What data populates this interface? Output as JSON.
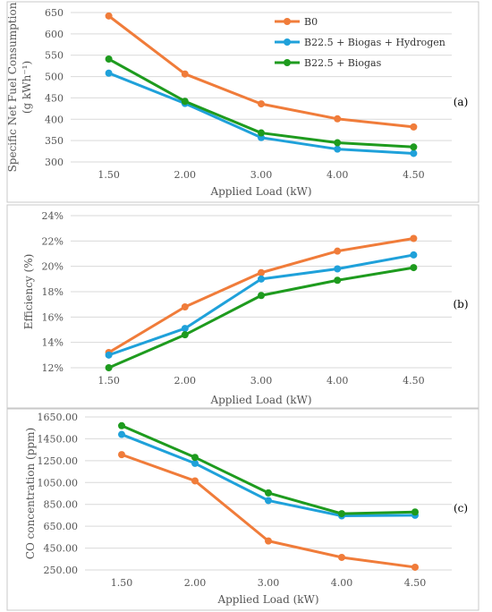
{
  "chart_data": [
    {
      "type": "line",
      "panel_label": "(a)",
      "categories": [
        "1.50",
        "2.00",
        "3.00",
        "4.00",
        "4.50"
      ],
      "xlabel": "Applied Load (kW)",
      "ylabel_line1": "Specific Net Fuel Consumption",
      "ylabel_line2": "(g kWh⁻¹)",
      "ylim": [
        300,
        650
      ],
      "yticks": [
        "300",
        "350",
        "400",
        "450",
        "500",
        "550",
        "600",
        "650"
      ],
      "ytick_values": [
        300,
        350,
        400,
        450,
        500,
        550,
        600,
        650
      ],
      "grid": true,
      "legend_position": "top-right-inside",
      "series": [
        {
          "name": "B0",
          "color": "#F07C3A",
          "values": [
            642,
            506,
            436,
            401,
            382
          ]
        },
        {
          "name": "B22.5 + Biogas + Hydrogen",
          "color": "#1FA1DA",
          "values": [
            508,
            437,
            357,
            330,
            320
          ]
        },
        {
          "name": "B22.5 + Biogas",
          "color": "#1E9B1E",
          "values": [
            541,
            442,
            368,
            345,
            335
          ]
        }
      ]
    },
    {
      "type": "line",
      "panel_label": "(b)",
      "categories": [
        "1.50",
        "2.00",
        "3.00",
        "4.00",
        "4.50"
      ],
      "xlabel": "Applied Load (kW)",
      "ylabel_line1": "Efficiency (%)",
      "ylabel_line2": "",
      "ylim": [
        12,
        24
      ],
      "yticks": [
        "12%",
        "14%",
        "16%",
        "18%",
        "20%",
        "22%",
        "24%"
      ],
      "ytick_values": [
        12,
        14,
        16,
        18,
        20,
        22,
        24
      ],
      "grid": true,
      "series": [
        {
          "name": "B0",
          "color": "#F07C3A",
          "values": [
            13.2,
            16.8,
            19.5,
            21.2,
            22.2
          ]
        },
        {
          "name": "B22.5 + Biogas + Hydrogen",
          "color": "#1FA1DA",
          "values": [
            13.0,
            15.1,
            19.0,
            19.8,
            20.9
          ]
        },
        {
          "name": "B22.5 + Biogas",
          "color": "#1E9B1E",
          "values": [
            12.0,
            14.6,
            17.7,
            18.9,
            19.9
          ]
        }
      ]
    },
    {
      "type": "line",
      "panel_label": "(c)",
      "categories": [
        "1.50",
        "2.00",
        "3.00",
        "4.00",
        "4.50"
      ],
      "xlabel": "Applied Load (kW)",
      "ylabel_line1": "CO concentration (ppm)",
      "ylabel_line2": "",
      "ylim": [
        250,
        1650
      ],
      "yticks": [
        "250.00",
        "450.00",
        "650.00",
        "850.00",
        "1050.00",
        "1250.00",
        "1450.00",
        "1650.00"
      ],
      "ytick_values": [
        250,
        450,
        650,
        850,
        1050,
        1250,
        1450,
        1650
      ],
      "grid": true,
      "series": [
        {
          "name": "B0",
          "color": "#F07C3A",
          "values": [
            1305,
            1065,
            515,
            365,
            275
          ]
        },
        {
          "name": "B22.5 + Biogas + Hydrogen",
          "color": "#1FA1DA",
          "values": [
            1490,
            1225,
            885,
            745,
            750
          ]
        },
        {
          "name": "B22.5 + Biogas",
          "color": "#1E9B1E",
          "values": [
            1570,
            1280,
            955,
            765,
            780
          ]
        }
      ]
    }
  ]
}
